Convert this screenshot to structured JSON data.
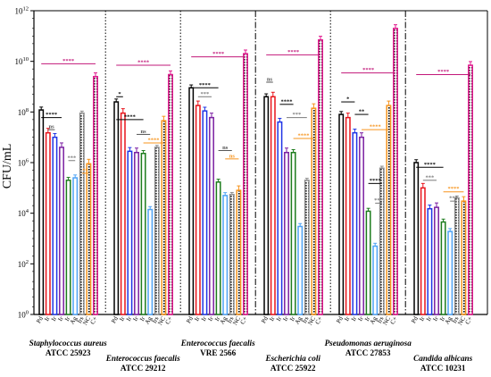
{
  "chart_data": {
    "type": "bar",
    "ylabel": "CFU/mL",
    "yscale": "log",
    "ylim": [
      1,
      1000000000000
    ],
    "yticks": [
      {
        "value": 1,
        "base": "10",
        "exp": "0"
      },
      {
        "value": 100,
        "base": "10",
        "exp": "2"
      },
      {
        "value": 10000,
        "base": "10",
        "exp": "4"
      },
      {
        "value": 1000000,
        "base": "10",
        "exp": "6"
      },
      {
        "value": 100000000,
        "base": "10",
        "exp": "8"
      },
      {
        "value": 10000000000,
        "base": "10",
        "exp": "10"
      },
      {
        "value": 1000000000000,
        "base": "10",
        "exp": "12"
      }
    ],
    "categories": [
      "Pd",
      "Ir",
      "Ir",
      "Ir",
      "Ir",
      "Ag",
      "Irs",
      "NC",
      "C+"
    ],
    "series_colors": [
      "#000000",
      "#e8141b",
      "#1f35e6",
      "#7b1fa2",
      "#1c7c1c",
      "#4ea3f5",
      "#8f8f8f",
      "#f7941d",
      "#e0168c"
    ],
    "groups": [
      {
        "name": "Staphylococcus aureus",
        "strain": "ATCC 25923",
        "values": [
          120000000,
          15000000,
          10000000,
          4000000,
          200000,
          250000,
          90000000,
          900000,
          2500000000
        ]
      },
      {
        "name": "Enterococcus faecalis",
        "strain": "ATCC 29212",
        "values": [
          250000000,
          90000000,
          2800000,
          2500000,
          2300000,
          14000,
          4000000,
          45000000,
          3000000000
        ]
      },
      {
        "name": "Enterococcus faecalis",
        "strain": "VRE 2566",
        "values": [
          900000000,
          180000000,
          110000000,
          60000000,
          170000,
          50000,
          55000,
          80000,
          20000000000
        ]
      },
      {
        "name": "Escherichia coli",
        "strain": "ATCC 25922",
        "values": [
          400000000,
          400000000,
          40000000,
          2500000,
          2500000,
          3000,
          200000,
          140000000,
          70000000000
        ]
      },
      {
        "name": "Pseudomonas aeruginosa",
        "strain": "ATCC 27853",
        "values": [
          80000000,
          60000000,
          15000000,
          10000000,
          12000,
          500,
          600000,
          180000000,
          200000000000
        ]
      },
      {
        "name": "Candida albicans",
        "strain": "ATCC 10231",
        "values": [
          1000000,
          100000,
          15000,
          17000,
          4500,
          1900,
          40000,
          30000,
          7000000000
        ]
      }
    ],
    "errors_factor": [
      1.3,
      1.5,
      1.4,
      1.5,
      1.3,
      1.3,
      1.2,
      1.5,
      1.4
    ],
    "separators": [
      {
        "after_group": 0,
        "style": "dotted"
      },
      {
        "after_group": 1,
        "style": "dotted"
      },
      {
        "after_group": 2,
        "style": "dashdot"
      },
      {
        "after_group": 3,
        "style": "dotted"
      },
      {
        "after_group": 4,
        "style": "dashdot"
      }
    ],
    "significance": [
      {
        "group": 0,
        "from": 0,
        "to": 8,
        "value": 8000000000,
        "label": "****",
        "color": "#c2187a"
      },
      {
        "group": 0,
        "from": 0,
        "to": 3,
        "value": 60000000,
        "label": "****",
        "color": "#000000"
      },
      {
        "group": 0,
        "from": 1,
        "to": 2,
        "value": 20000000,
        "label": "ns",
        "color": "#555555"
      },
      {
        "group": 0,
        "from": 4,
        "to": 5,
        "value": 1200000,
        "label": "***",
        "color": "#7a7a7a"
      },
      {
        "group": 0,
        "from": 6,
        "to": 7,
        "value": 380000,
        "label": "**",
        "color": "#f7941d"
      },
      {
        "group": 1,
        "from": 0,
        "to": 8,
        "value": 7000000000,
        "label": "****",
        "color": "#c2187a"
      },
      {
        "group": 1,
        "from": 0,
        "to": 1,
        "value": 400000000,
        "label": "*",
        "color": "#000000"
      },
      {
        "group": 1,
        "from": 0,
        "to": 4,
        "value": 50000000,
        "label": "****",
        "color": "#000000"
      },
      {
        "group": 1,
        "from": 3,
        "to": 5,
        "value": 13000000,
        "label": "ns",
        "color": "#555555"
      },
      {
        "group": 1,
        "from": 4,
        "to": 7,
        "value": 6000000,
        "label": "****",
        "color": "#f7941d"
      },
      {
        "group": 2,
        "from": 0,
        "to": 8,
        "value": 15000000000,
        "label": "****",
        "color": "#c2187a"
      },
      {
        "group": 2,
        "from": 0,
        "to": 4,
        "value": 900000000,
        "label": "****",
        "color": "#000000"
      },
      {
        "group": 2,
        "from": 1,
        "to": 3,
        "value": 400000000,
        "label": "***",
        "color": "#7a7a7a"
      },
      {
        "group": 2,
        "from": 4,
        "to": 6,
        "value": 3000000,
        "label": "ns",
        "color": "#555555"
      },
      {
        "group": 2,
        "from": 5,
        "to": 7,
        "value": 1400000,
        "label": "ns",
        "color": "#f7941d"
      },
      {
        "group": 3,
        "from": 0,
        "to": 8,
        "value": 18000000000,
        "label": "****",
        "color": "#c2187a"
      },
      {
        "group": 3,
        "from": 0,
        "to": 1,
        "value": 1500000000,
        "label": "ns",
        "color": "#555555"
      },
      {
        "group": 3,
        "from": 2,
        "to": 4,
        "value": 200000000,
        "label": "****",
        "color": "#000000"
      },
      {
        "group": 3,
        "from": 3,
        "to": 6,
        "value": 60000000,
        "label": "***",
        "color": "#7a7a7a"
      },
      {
        "group": 3,
        "from": 4,
        "to": 7,
        "value": 9000000,
        "label": "****",
        "color": "#f7941d"
      },
      {
        "group": 4,
        "from": 0,
        "to": 8,
        "value": 3500000000,
        "label": "****",
        "color": "#c2187a"
      },
      {
        "group": 4,
        "from": 0,
        "to": 2,
        "value": 250000000,
        "label": "*",
        "color": "#000000"
      },
      {
        "group": 4,
        "from": 2,
        "to": 4,
        "value": 80000000,
        "label": "**",
        "color": "#000000"
      },
      {
        "group": 4,
        "from": 3,
        "to": 7,
        "value": 20000000,
        "label": "****",
        "color": "#f7941d"
      },
      {
        "group": 4,
        "from": 4,
        "to": 6,
        "value": 150000,
        "label": "****",
        "color": "#000000"
      },
      {
        "group": 4,
        "from": 5,
        "to": 6,
        "value": 25000,
        "label": "***",
        "color": "#7a7a7a"
      },
      {
        "group": 5,
        "from": 0,
        "to": 8,
        "value": 3000000000,
        "label": "****",
        "color": "#c2187a"
      },
      {
        "group": 5,
        "from": 0,
        "to": 4,
        "value": 650000,
        "label": "****",
        "color": "#000000"
      },
      {
        "group": 5,
        "from": 1,
        "to": 3,
        "value": 200000,
        "label": "***",
        "color": "#7a7a7a"
      },
      {
        "group": 5,
        "from": 4,
        "to": 7,
        "value": 70000,
        "label": "****",
        "color": "#f7941d"
      },
      {
        "group": 5,
        "from": 5,
        "to": 6,
        "value": 30000,
        "label": "***",
        "color": "#7a7a7a"
      }
    ]
  }
}
